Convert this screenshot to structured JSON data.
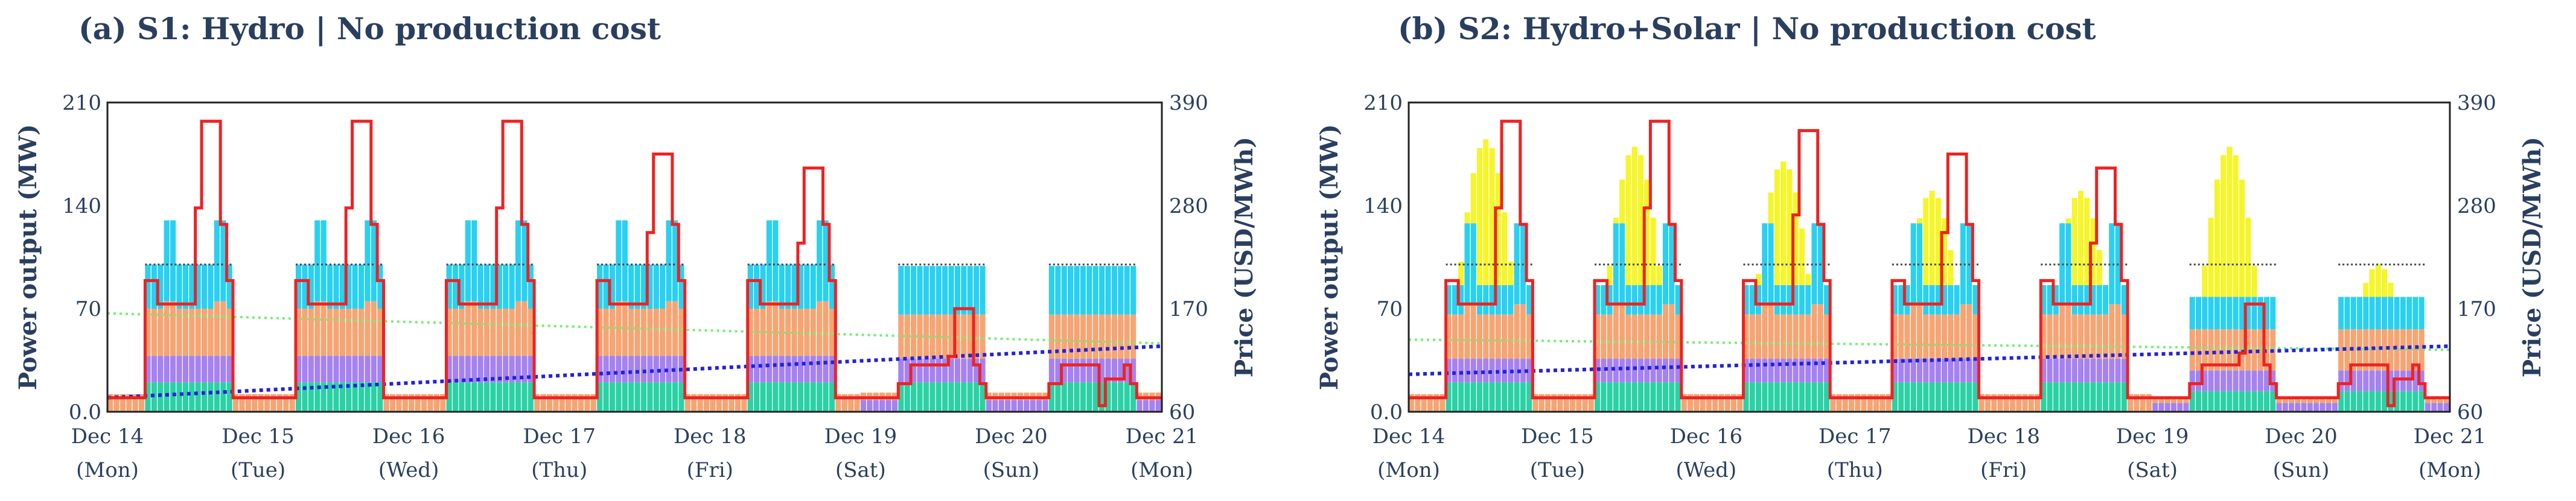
{
  "chart_data": [
    {
      "type": "stacked-bar-line",
      "title": "(a) S1: Hydro | No production cost",
      "ylabel": "Power output (MW)",
      "y2label": "Price (USD/MWh)",
      "ylim": [
        0,
        210
      ],
      "y2lim": [
        60,
        390
      ],
      "yticks": [
        "0.0",
        "70",
        "140",
        "210"
      ],
      "y2ticks": [
        "60",
        "170",
        "280",
        "390"
      ],
      "xticks": [
        {
          "day": "Dec 14",
          "weekday": "(Mon)"
        },
        {
          "day": "Dec 15",
          "weekday": "(Tue)"
        },
        {
          "day": "Dec 16",
          "weekday": "(Wed)"
        },
        {
          "day": "Dec 17",
          "weekday": "(Thu)"
        },
        {
          "day": "Dec 18",
          "weekday": "(Fri)"
        },
        {
          "day": "Dec 19",
          "weekday": "(Sat)"
        },
        {
          "day": "Dec 20",
          "weekday": "(Sun)"
        },
        {
          "day": "Dec 21",
          "weekday": "(Mon)"
        }
      ],
      "hours": 168,
      "colors": {
        "teal": "#2bd1a5",
        "purple": "#a582f0",
        "orange": "#f5a574",
        "cyan": "#2ad0f0",
        "solar": "#f5f52a",
        "price": "#ee2222",
        "storage": "#2222dd",
        "light": "#77ee77",
        "border": "#444444"
      },
      "series": [
        {
          "name": "unit 1",
          "color": "teal",
          "profile": {
            "weekday": {
              "offpeak": 0,
              "shoulder": 20,
              "peak": 20
            },
            "weekend": {
              "offpeak": 0,
              "shoulder": 20,
              "peak": 20
            }
          }
        },
        {
          "name": "unit 2",
          "color": "purple",
          "profile": {
            "weekday": {
              "offpeak": 0,
              "shoulder": 18,
              "peak": 18
            },
            "weekend": {
              "offpeak": 8,
              "shoulder": 16,
              "peak": 16
            }
          }
        },
        {
          "name": "unit 3",
          "color": "orange",
          "profile": {
            "weekday": {
              "offpeak": 12,
              "shoulder": 32,
              "peak": 37
            },
            "weekend": {
              "offpeak": 5,
              "shoulder": 30,
              "peak": 30
            }
          }
        },
        {
          "name": "unit 4",
          "color": "cyan",
          "profile": {
            "weekday": {
              "offpeak": 0,
              "shoulder": 30,
              "peak": 55
            },
            "weekend": {
              "offpeak": 0,
              "shoulder": 33,
              "peak": 33
            }
          }
        }
      ],
      "price_peaks": [
        370,
        370,
        370,
        335,
        320,
        170,
        95
      ],
      "storage": {
        "start": 75,
        "end": 130
      },
      "light_line": {
        "start": 165,
        "end": 133
      }
    },
    {
      "type": "stacked-bar-line",
      "title": "(b) S2: Hydro+Solar | No production cost",
      "ylabel": "Power output (MW)",
      "y2label": "Price (USD/MWh)",
      "ylim": [
        0,
        210
      ],
      "y2lim": [
        60,
        390
      ],
      "yticks": [
        "0.0",
        "70",
        "140",
        "210"
      ],
      "y2ticks": [
        "60",
        "170",
        "280",
        "390"
      ],
      "xticks": [
        {
          "day": "Dec 14",
          "weekday": "(Mon)"
        },
        {
          "day": "Dec 15",
          "weekday": "(Tue)"
        },
        {
          "day": "Dec 16",
          "weekday": "(Wed)"
        },
        {
          "day": "Dec 17",
          "weekday": "(Thu)"
        },
        {
          "day": "Dec 18",
          "weekday": "(Fri)"
        },
        {
          "day": "Dec 19",
          "weekday": "(Sat)"
        },
        {
          "day": "Dec 20",
          "weekday": "(Sun)"
        },
        {
          "day": "Dec 21",
          "weekday": "(Mon)"
        }
      ],
      "hours": 168,
      "colors": {
        "teal": "#2bd1a5",
        "purple": "#a582f0",
        "orange": "#f5a574",
        "cyan": "#2ad0f0",
        "solar": "#f5f52a",
        "price": "#ee2222",
        "storage": "#2222dd",
        "light": "#77ee77",
        "border": "#444444"
      },
      "series": [
        {
          "name": "unit 1",
          "color": "teal",
          "profile": {
            "weekday": {
              "offpeak": 0,
              "shoulder": 20,
              "peak": 20
            },
            "weekend": {
              "offpeak": 0,
              "shoulder": 14,
              "peak": 14
            }
          }
        },
        {
          "name": "unit 2",
          "color": "purple",
          "profile": {
            "weekday": {
              "offpeak": 0,
              "shoulder": 16,
              "peak": 16
            },
            "weekend": {
              "offpeak": 6,
              "shoulder": 14,
              "peak": 14
            }
          }
        },
        {
          "name": "unit 3",
          "color": "orange",
          "profile": {
            "weekday": {
              "offpeak": 12,
              "shoulder": 30,
              "peak": 37
            },
            "weekend": {
              "offpeak": 4,
              "shoulder": 28,
              "peak": 28
            }
          }
        },
        {
          "name": "unit 4",
          "color": "cyan",
          "profile": {
            "weekday": {
              "offpeak": 0,
              "shoulder": 20,
              "peak": 55
            },
            "weekend": {
              "offpeak": 0,
              "shoulder": 22,
              "peak": 22
            }
          }
        },
        {
          "name": "solar",
          "color": "solar",
          "profile": {
            "daily_peak": [
              185,
              180,
              170,
              150,
              150,
              180,
              100
            ]
          }
        }
      ],
      "price_peaks": [
        370,
        370,
        360,
        335,
        320,
        175,
        95
      ],
      "storage": {
        "start": 100,
        "end": 130
      },
      "light_line": {
        "start": 137,
        "end": 126
      }
    }
  ]
}
